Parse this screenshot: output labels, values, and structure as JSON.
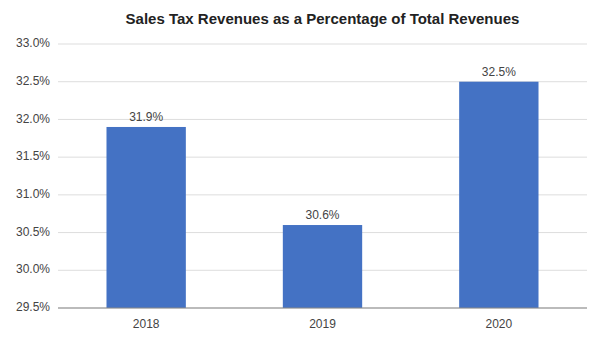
{
  "chart_data": {
    "type": "bar",
    "title": "Sales Tax Revenues as a Percentage of Total Revenues",
    "categories": [
      "2018",
      "2019",
      "2020"
    ],
    "values": [
      31.9,
      30.6,
      32.5
    ],
    "value_labels": [
      "31.9%",
      "30.6%",
      "32.5%"
    ],
    "data_labels": true,
    "color": "#4472C4",
    "ylim": [
      29.5,
      33.0
    ],
    "yticks": [
      {
        "value": 29.5,
        "label": "29.5%"
      },
      {
        "value": 30.0,
        "label": "30.0%"
      },
      {
        "value": 30.5,
        "label": "30.5%"
      },
      {
        "value": 31.0,
        "label": "31.0%"
      },
      {
        "value": 31.5,
        "label": "31.5%"
      },
      {
        "value": 32.0,
        "label": "32.0%"
      },
      {
        "value": 32.5,
        "label": "32.5%"
      },
      {
        "value": 33.0,
        "label": "33.0%"
      }
    ],
    "grid": true
  }
}
